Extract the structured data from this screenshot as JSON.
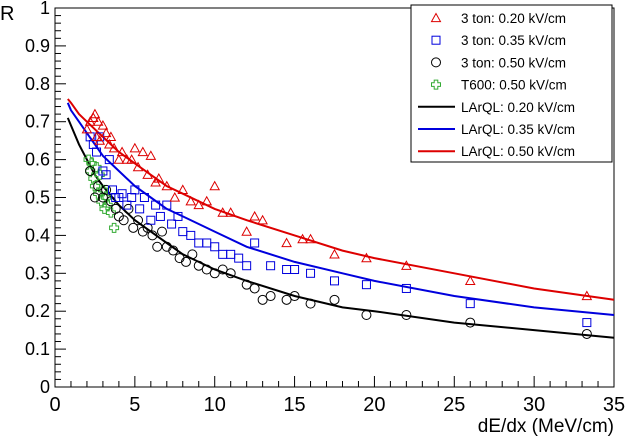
{
  "chart_data": {
    "type": "scatter",
    "title": "",
    "xlabel": "dE/dx (MeV/cm)",
    "ylabel": "R",
    "xlim": [
      0,
      35
    ],
    "ylim": [
      0,
      1
    ],
    "xticks": [
      0,
      5,
      10,
      15,
      20,
      25,
      30,
      35
    ],
    "yticks": [
      0,
      0.1,
      0.2,
      0.3,
      0.4,
      0.5,
      0.6,
      0.7,
      0.8,
      0.9,
      1
    ],
    "grid": false,
    "legend_position": "top-right",
    "series": [
      {
        "name": "3 ton: 0.20 kV/cm",
        "marker": "triangle",
        "color": "#dd0000",
        "x": [
          2.0,
          2.2,
          2.4,
          2.5,
          2.6,
          2.7,
          2.8,
          3.0,
          3.2,
          3.4,
          3.5,
          3.7,
          4.0,
          4.2,
          4.5,
          4.8,
          5.0,
          5.2,
          5.5,
          5.8,
          6.0,
          6.3,
          6.5,
          7.0,
          7.5,
          8.0,
          8.5,
          9.0,
          9.5,
          10.0,
          10.5,
          11.0,
          12.0,
          12.5,
          13.0,
          14.5,
          15.5,
          16.0,
          17.5,
          19.5,
          22.0,
          26.0,
          33.3
        ],
        "y": [
          0.68,
          0.7,
          0.71,
          0.72,
          0.66,
          0.7,
          0.65,
          0.69,
          0.67,
          0.64,
          0.66,
          0.63,
          0.6,
          0.62,
          0.6,
          0.6,
          0.63,
          0.58,
          0.62,
          0.56,
          0.61,
          0.54,
          0.55,
          0.53,
          0.5,
          0.52,
          0.49,
          0.48,
          0.49,
          0.53,
          0.46,
          0.46,
          0.41,
          0.45,
          0.44,
          0.38,
          0.39,
          0.39,
          0.35,
          0.34,
          0.32,
          0.28,
          0.24
        ]
      },
      {
        "name": "3 ton: 0.35 kV/cm",
        "marker": "square",
        "color": "#0000dd",
        "x": [
          2.2,
          2.4,
          2.6,
          2.8,
          3.0,
          3.2,
          3.4,
          3.6,
          3.8,
          4.0,
          4.2,
          4.5,
          4.8,
          5.0,
          5.3,
          5.6,
          6.0,
          6.3,
          6.6,
          7.0,
          7.3,
          7.7,
          8.0,
          8.5,
          9.0,
          9.5,
          10.0,
          10.5,
          11.0,
          11.5,
          12.0,
          12.5,
          13.5,
          14.5,
          15.0,
          16.0,
          17.5,
          19.5,
          22.0,
          26.0,
          33.3
        ],
        "y": [
          0.66,
          0.64,
          0.62,
          0.66,
          0.57,
          0.56,
          0.6,
          0.52,
          0.5,
          0.5,
          0.51,
          0.48,
          0.5,
          0.52,
          0.47,
          0.5,
          0.44,
          0.48,
          0.45,
          0.48,
          0.43,
          0.45,
          0.41,
          0.4,
          0.38,
          0.38,
          0.37,
          0.35,
          0.35,
          0.34,
          0.32,
          0.38,
          0.32,
          0.31,
          0.31,
          0.3,
          0.28,
          0.27,
          0.26,
          0.22,
          0.17
        ]
      },
      {
        "name": "3 ton: 0.50 kV/cm",
        "marker": "circle",
        "color": "#000000",
        "x": [
          2.2,
          2.5,
          2.7,
          3.0,
          3.2,
          3.5,
          3.8,
          4.0,
          4.3,
          4.6,
          4.9,
          5.2,
          5.5,
          5.8,
          6.1,
          6.4,
          6.7,
          7.0,
          7.4,
          7.8,
          8.2,
          8.6,
          9.0,
          9.5,
          10.0,
          10.5,
          11.0,
          12.0,
          12.5,
          13.0,
          13.5,
          14.5,
          15.0,
          16.0,
          17.5,
          19.5,
          22.0,
          26.0,
          33.3
        ],
        "y": [
          0.57,
          0.5,
          0.53,
          0.5,
          0.52,
          0.49,
          0.47,
          0.45,
          0.44,
          0.47,
          0.42,
          0.44,
          0.41,
          0.42,
          0.4,
          0.37,
          0.41,
          0.37,
          0.36,
          0.34,
          0.33,
          0.35,
          0.32,
          0.31,
          0.3,
          0.31,
          0.3,
          0.27,
          0.26,
          0.23,
          0.24,
          0.23,
          0.24,
          0.22,
          0.23,
          0.19,
          0.19,
          0.17,
          0.14
        ]
      },
      {
        "name": "T600: 0.50 kV/cm",
        "marker": "cross",
        "color": "#33aa33",
        "x": [
          2.1,
          2.2,
          2.3,
          2.4,
          2.5,
          2.6,
          2.7,
          2.8,
          2.9,
          3.0,
          3.1,
          3.2,
          3.3,
          3.5,
          3.7
        ],
        "y": [
          0.6,
          0.57,
          0.59,
          0.55,
          0.53,
          0.58,
          0.51,
          0.56,
          0.49,
          0.52,
          0.47,
          0.5,
          0.48,
          0.46,
          0.42
        ]
      }
    ],
    "curves": [
      {
        "name": "LArQL: 0.20 kV/cm",
        "color": "#000000",
        "x": [
          0.8,
          1.0,
          1.5,
          2.0,
          2.5,
          3.0,
          4.0,
          5.0,
          6.0,
          7.0,
          8.0,
          10.0,
          12.0,
          15.0,
          18.0,
          20.0,
          25.0,
          30.0,
          35.0
        ],
        "y": [
          0.71,
          0.69,
          0.64,
          0.6,
          0.56,
          0.53,
          0.48,
          0.44,
          0.41,
          0.38,
          0.35,
          0.31,
          0.28,
          0.24,
          0.21,
          0.2,
          0.17,
          0.15,
          0.13
        ]
      },
      {
        "name": "LArQL: 0.35 kV/cm",
        "color": "#0000dd",
        "x": [
          0.8,
          1.0,
          1.5,
          2.0,
          2.5,
          3.0,
          4.0,
          5.0,
          6.0,
          7.0,
          8.0,
          10.0,
          12.0,
          15.0,
          18.0,
          20.0,
          25.0,
          30.0,
          35.0
        ],
        "y": [
          0.75,
          0.73,
          0.7,
          0.67,
          0.64,
          0.61,
          0.57,
          0.53,
          0.5,
          0.47,
          0.45,
          0.41,
          0.37,
          0.33,
          0.3,
          0.28,
          0.24,
          0.21,
          0.19
        ]
      },
      {
        "name": "LArQL: 0.50 kV/cm",
        "color": "#dd0000",
        "x": [
          0.8,
          1.0,
          1.5,
          2.0,
          2.5,
          3.0,
          4.0,
          5.0,
          6.0,
          7.0,
          8.0,
          10.0,
          12.0,
          15.0,
          18.0,
          20.0,
          25.0,
          30.0,
          35.0
        ],
        "y": [
          0.76,
          0.75,
          0.72,
          0.7,
          0.68,
          0.66,
          0.62,
          0.59,
          0.56,
          0.53,
          0.51,
          0.47,
          0.44,
          0.4,
          0.36,
          0.34,
          0.3,
          0.26,
          0.23
        ]
      }
    ]
  }
}
